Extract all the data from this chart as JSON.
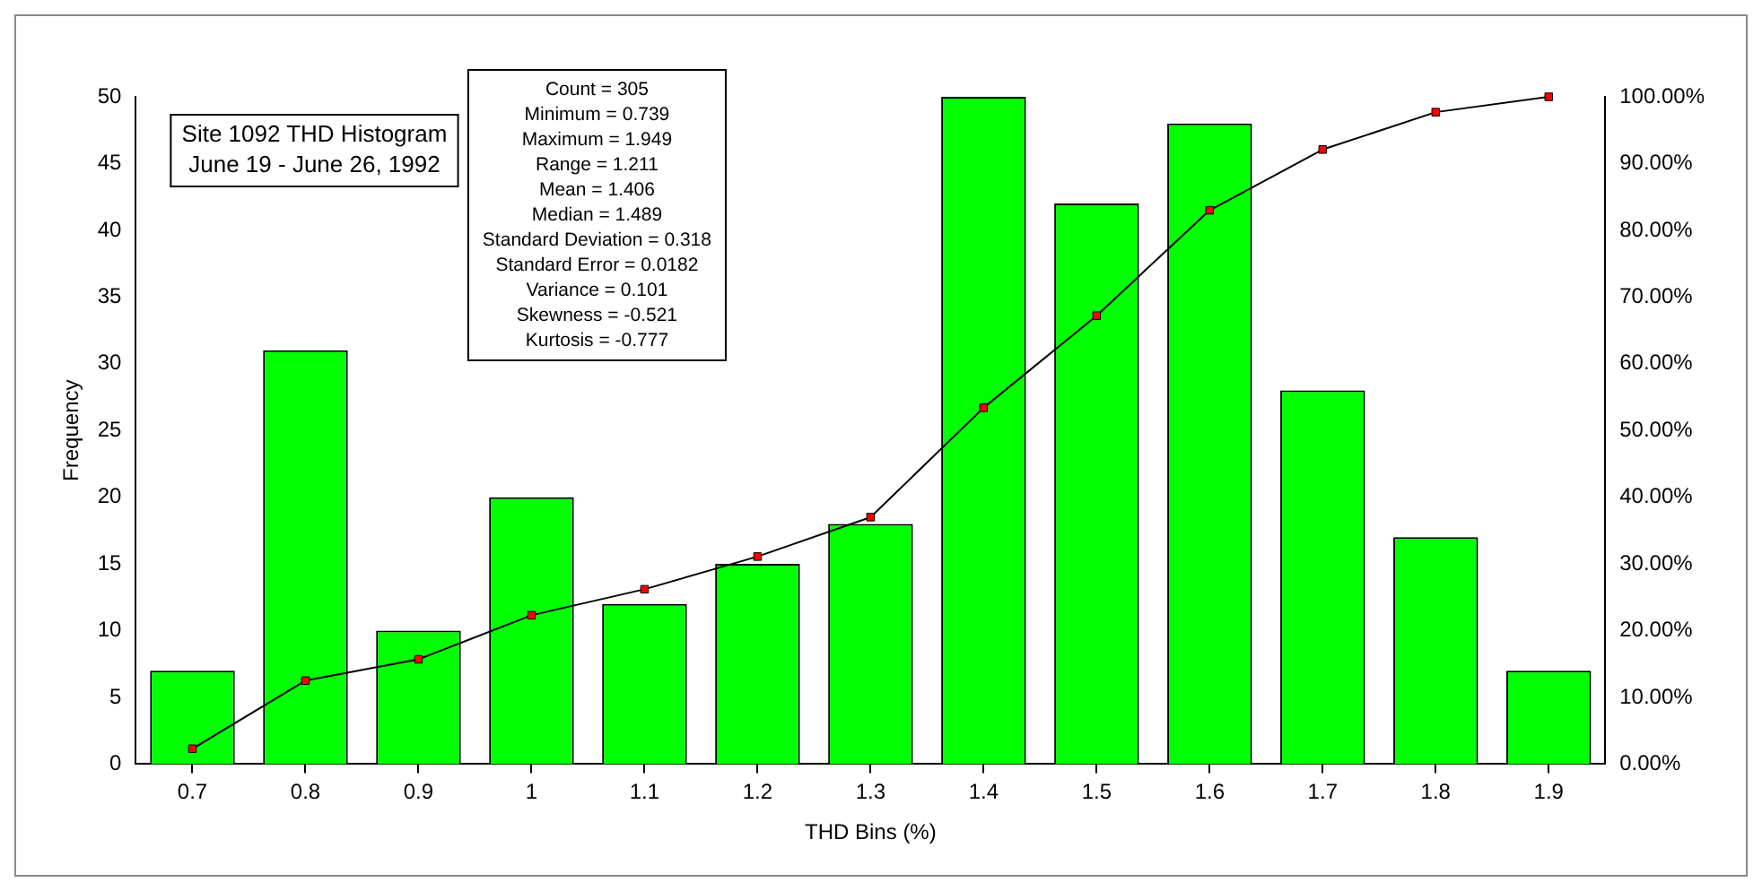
{
  "chart_data": {
    "type": "bar",
    "title": "Site 1092 THD Histogram",
    "subtitle": "June 19 - June 26, 1992",
    "xlabel": "THD Bins (%)",
    "ylabel": "Frequency",
    "categories": [
      "0.7",
      "0.8",
      "0.9",
      "1",
      "1.1",
      "1.2",
      "1.3",
      "1.4",
      "1.5",
      "1.6",
      "1.7",
      "1.8",
      "1.9"
    ],
    "series": [
      {
        "color": "#00ff00",
        "values": [
          7,
          31,
          10,
          20,
          12,
          15,
          18,
          50,
          42,
          48,
          28,
          17,
          7
        ]
      },
      {
        "type": "line",
        "axis": "y2",
        "color": "#000000",
        "marker": "square",
        "values": [
          2.3,
          12.5,
          15.7,
          22.3,
          26.2,
          31.1,
          37.0,
          53.4,
          67.2,
          83.0,
          92.1,
          97.7,
          100
        ]
      }
    ],
    "ylim": [
      0,
      50
    ],
    "yticks": [
      0,
      5,
      10,
      15,
      20,
      25,
      30,
      35,
      40,
      45,
      50
    ],
    "y2lim": [
      0,
      100
    ],
    "y2ticks": [
      {
        "value": 0,
        "label": "0.00%"
      },
      {
        "value": 10,
        "label": "10.00%"
      },
      {
        "value": 20,
        "label": "20.00%"
      },
      {
        "value": 30,
        "label": "30.00%"
      },
      {
        "value": 40,
        "label": "40.00%"
      },
      {
        "value": 50,
        "label": "50.00%"
      },
      {
        "value": 60,
        "label": "60.00%"
      },
      {
        "value": 70,
        "label": "70.00%"
      },
      {
        "value": 80,
        "label": "80.00%"
      },
      {
        "value": 90,
        "label": "90.00%"
      },
      {
        "value": 100,
        "label": "100.00%"
      }
    ],
    "annotations": [
      "Count = 305",
      "Minimum = 0.739",
      "Maximum = 1.949",
      "Range = 1.211",
      "Mean = 1.406",
      "Median = 1.489",
      "Standard Deviation = 0.318",
      "Standard Error = 0.0182",
      "Variance = 0.101",
      "Skewness = -0.521",
      "Kurtosis = -0.777"
    ],
    "legend": false
  }
}
